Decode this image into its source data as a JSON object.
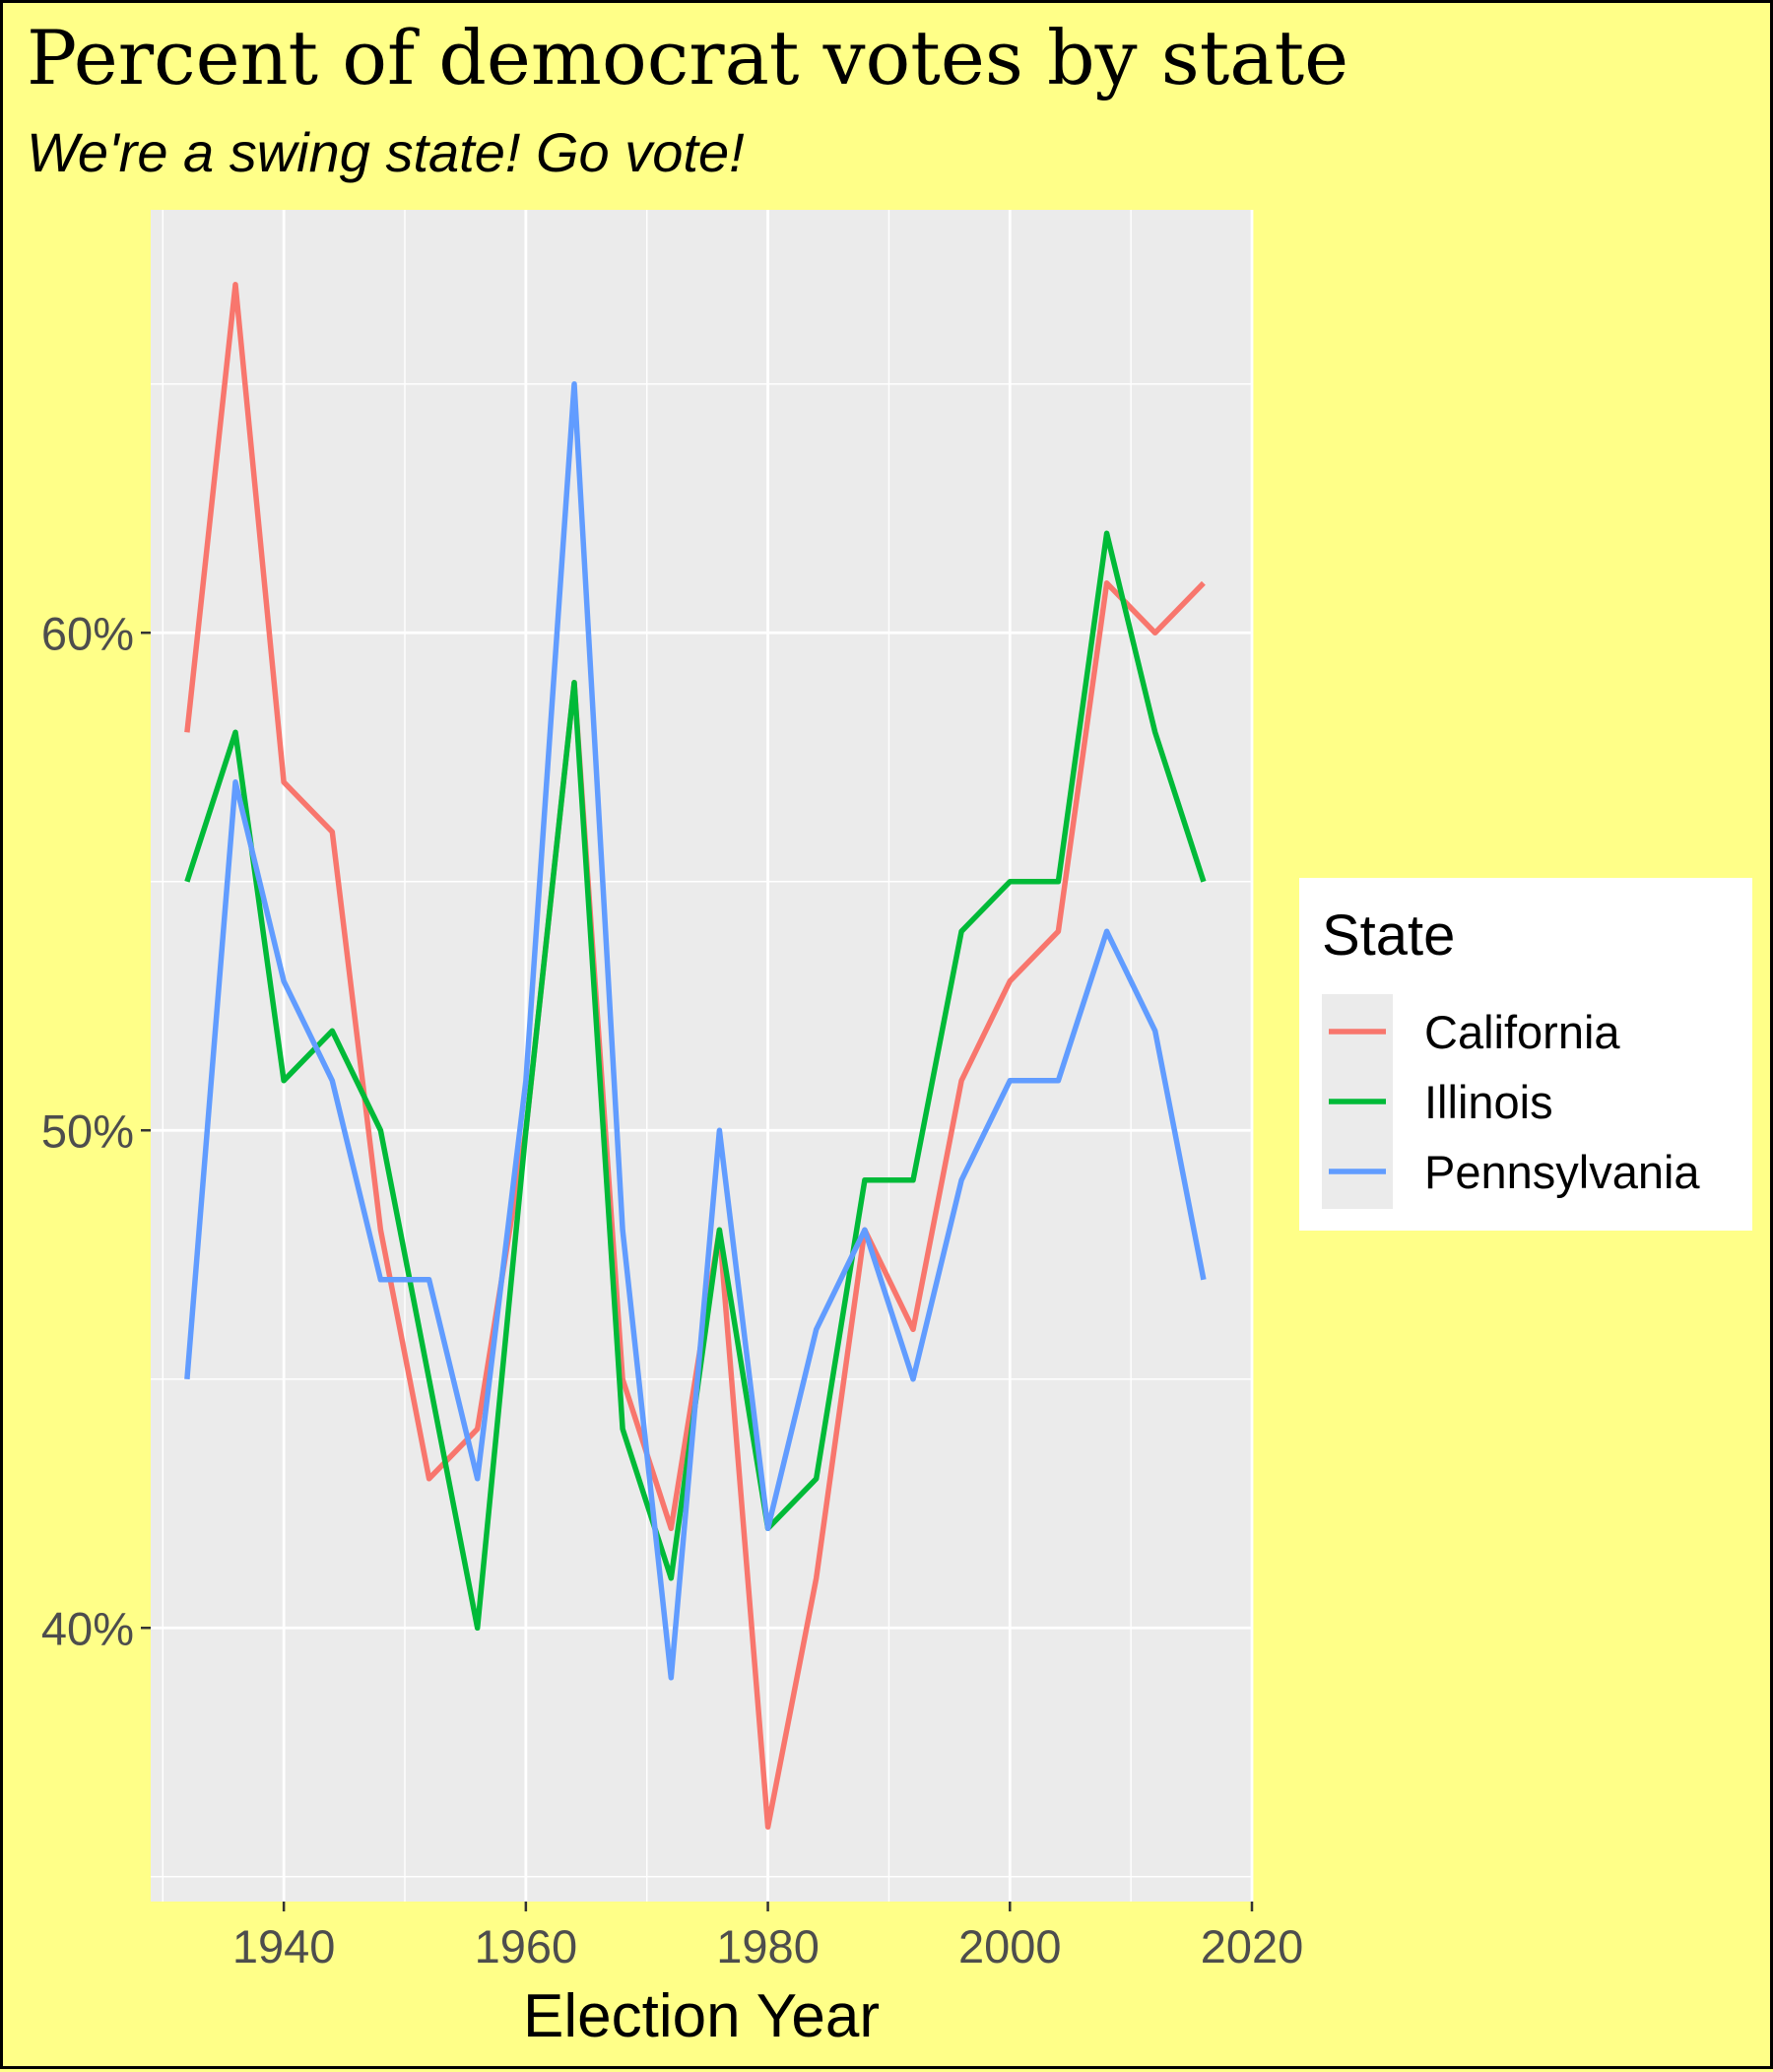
{
  "chart_data": {
    "type": "line",
    "title": "Percent of democrat votes by state",
    "subtitle": "We're a swing state! Go vote!",
    "xlabel": "Election Year",
    "ylabel": "",
    "xlim": [
      1929,
      2020
    ],
    "ylim": [
      34.5,
      68.5
    ],
    "x_ticks": [
      1940,
      1960,
      1980,
      2000,
      2020
    ],
    "y_ticks": [
      40,
      50,
      60
    ],
    "y_tick_labels": [
      "40%",
      "50%",
      "60%"
    ],
    "grid": true,
    "legend": {
      "title": "State",
      "position": "right"
    },
    "x": [
      1932,
      1936,
      1940,
      1944,
      1948,
      1952,
      1956,
      1960,
      1964,
      1968,
      1972,
      1976,
      1980,
      1984,
      1988,
      1992,
      1996,
      2000,
      2004,
      2008,
      2012,
      2016
    ],
    "series": [
      {
        "name": "California",
        "color": "#f8766d",
        "values": [
          58,
          67,
          57,
          56,
          48,
          43,
          44,
          50,
          59,
          45,
          42,
          48,
          36,
          41,
          48,
          46,
          51,
          53,
          54,
          61,
          60,
          61
        ]
      },
      {
        "name": "Illinois",
        "color": "#00ba38",
        "values": [
          55,
          58,
          51,
          52,
          50,
          45,
          40,
          50,
          59,
          44,
          41,
          48,
          42,
          43,
          49,
          49,
          54,
          55,
          55,
          62,
          58,
          55
        ]
      },
      {
        "name": "Pennsylvania",
        "color": "#619cff",
        "values": [
          45,
          57,
          53,
          51,
          47,
          47,
          43,
          51,
          65,
          48,
          39,
          50,
          42,
          46,
          48,
          45,
          49,
          51,
          51,
          54,
          52,
          47
        ]
      }
    ]
  }
}
